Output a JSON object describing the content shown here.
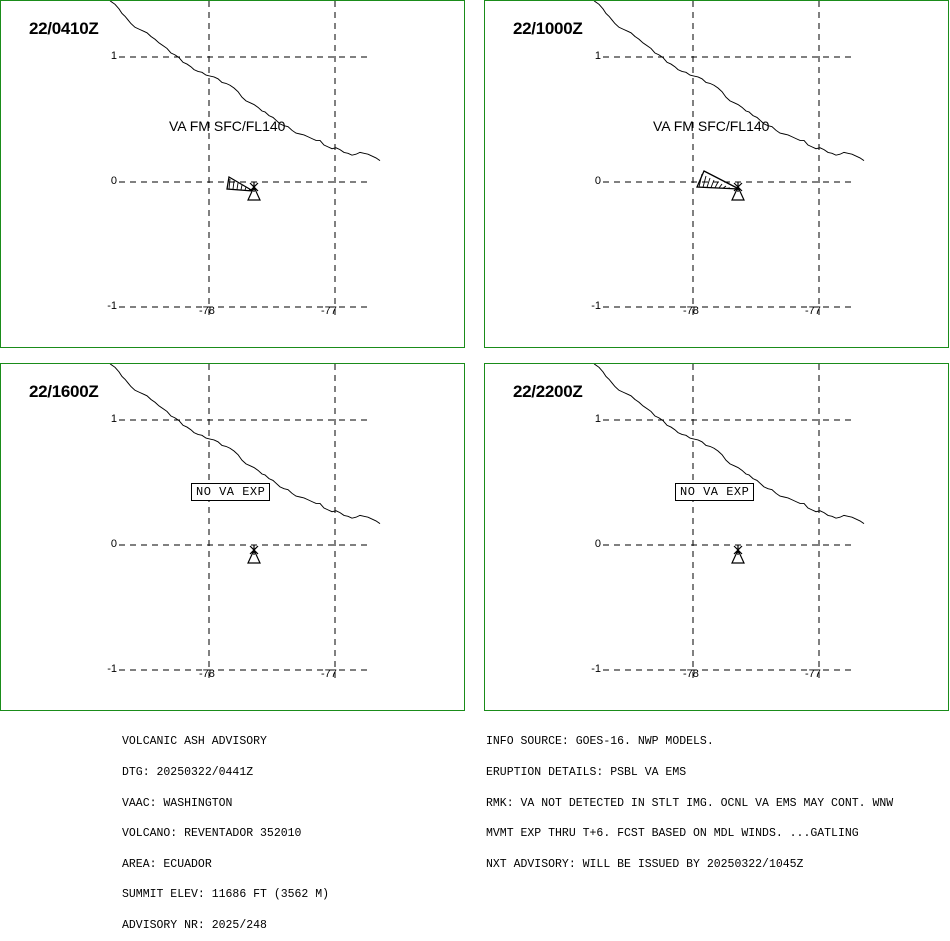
{
  "panels": [
    {
      "time": "22/0410Z",
      "label": "VA FM SFC/FL140",
      "label_type": "text",
      "plume": "small"
    },
    {
      "time": "22/1000Z",
      "label": "VA FM SFC/FL140",
      "label_type": "text",
      "plume": "large"
    },
    {
      "time": "22/1600Z",
      "label": "NO VA EXP",
      "label_type": "box",
      "plume": "none"
    },
    {
      "time": "22/2200Z",
      "label": "NO VA EXP",
      "label_type": "box",
      "plume": "none"
    }
  ],
  "axes": {
    "lat_labels": [
      "1",
      "0",
      "-1"
    ],
    "lon_labels": [
      "-78",
      "-77"
    ]
  },
  "advisory_left": [
    "VOLCANIC ASH ADVISORY",
    "DTG: 20250322/0441Z",
    "VAAC: WASHINGTON",
    "VOLCANO: REVENTADOR 352010",
    "AREA: ECUADOR",
    "SUMMIT ELEV: 11686 FT (3562 M)",
    "ADVISORY NR: 2025/248"
  ],
  "advisory_right": [
    "INFO SOURCE: GOES-16. NWP MODELS.",
    "ERUPTION DETAILS: PSBL VA EMS",
    "RMK: VA NOT DETECTED IN STLT IMG. OCNL VA EMS MAY CONT. WNW",
    "MVMT EXP THRU T+6. FCST BASED ON MDL WINDS. ...GATLING",
    "NXT ADVISORY: WILL BE ISSUED BY 20250322/1045Z"
  ],
  "colors": {
    "frame": "#1a8c1a",
    "lines": "#000000"
  }
}
